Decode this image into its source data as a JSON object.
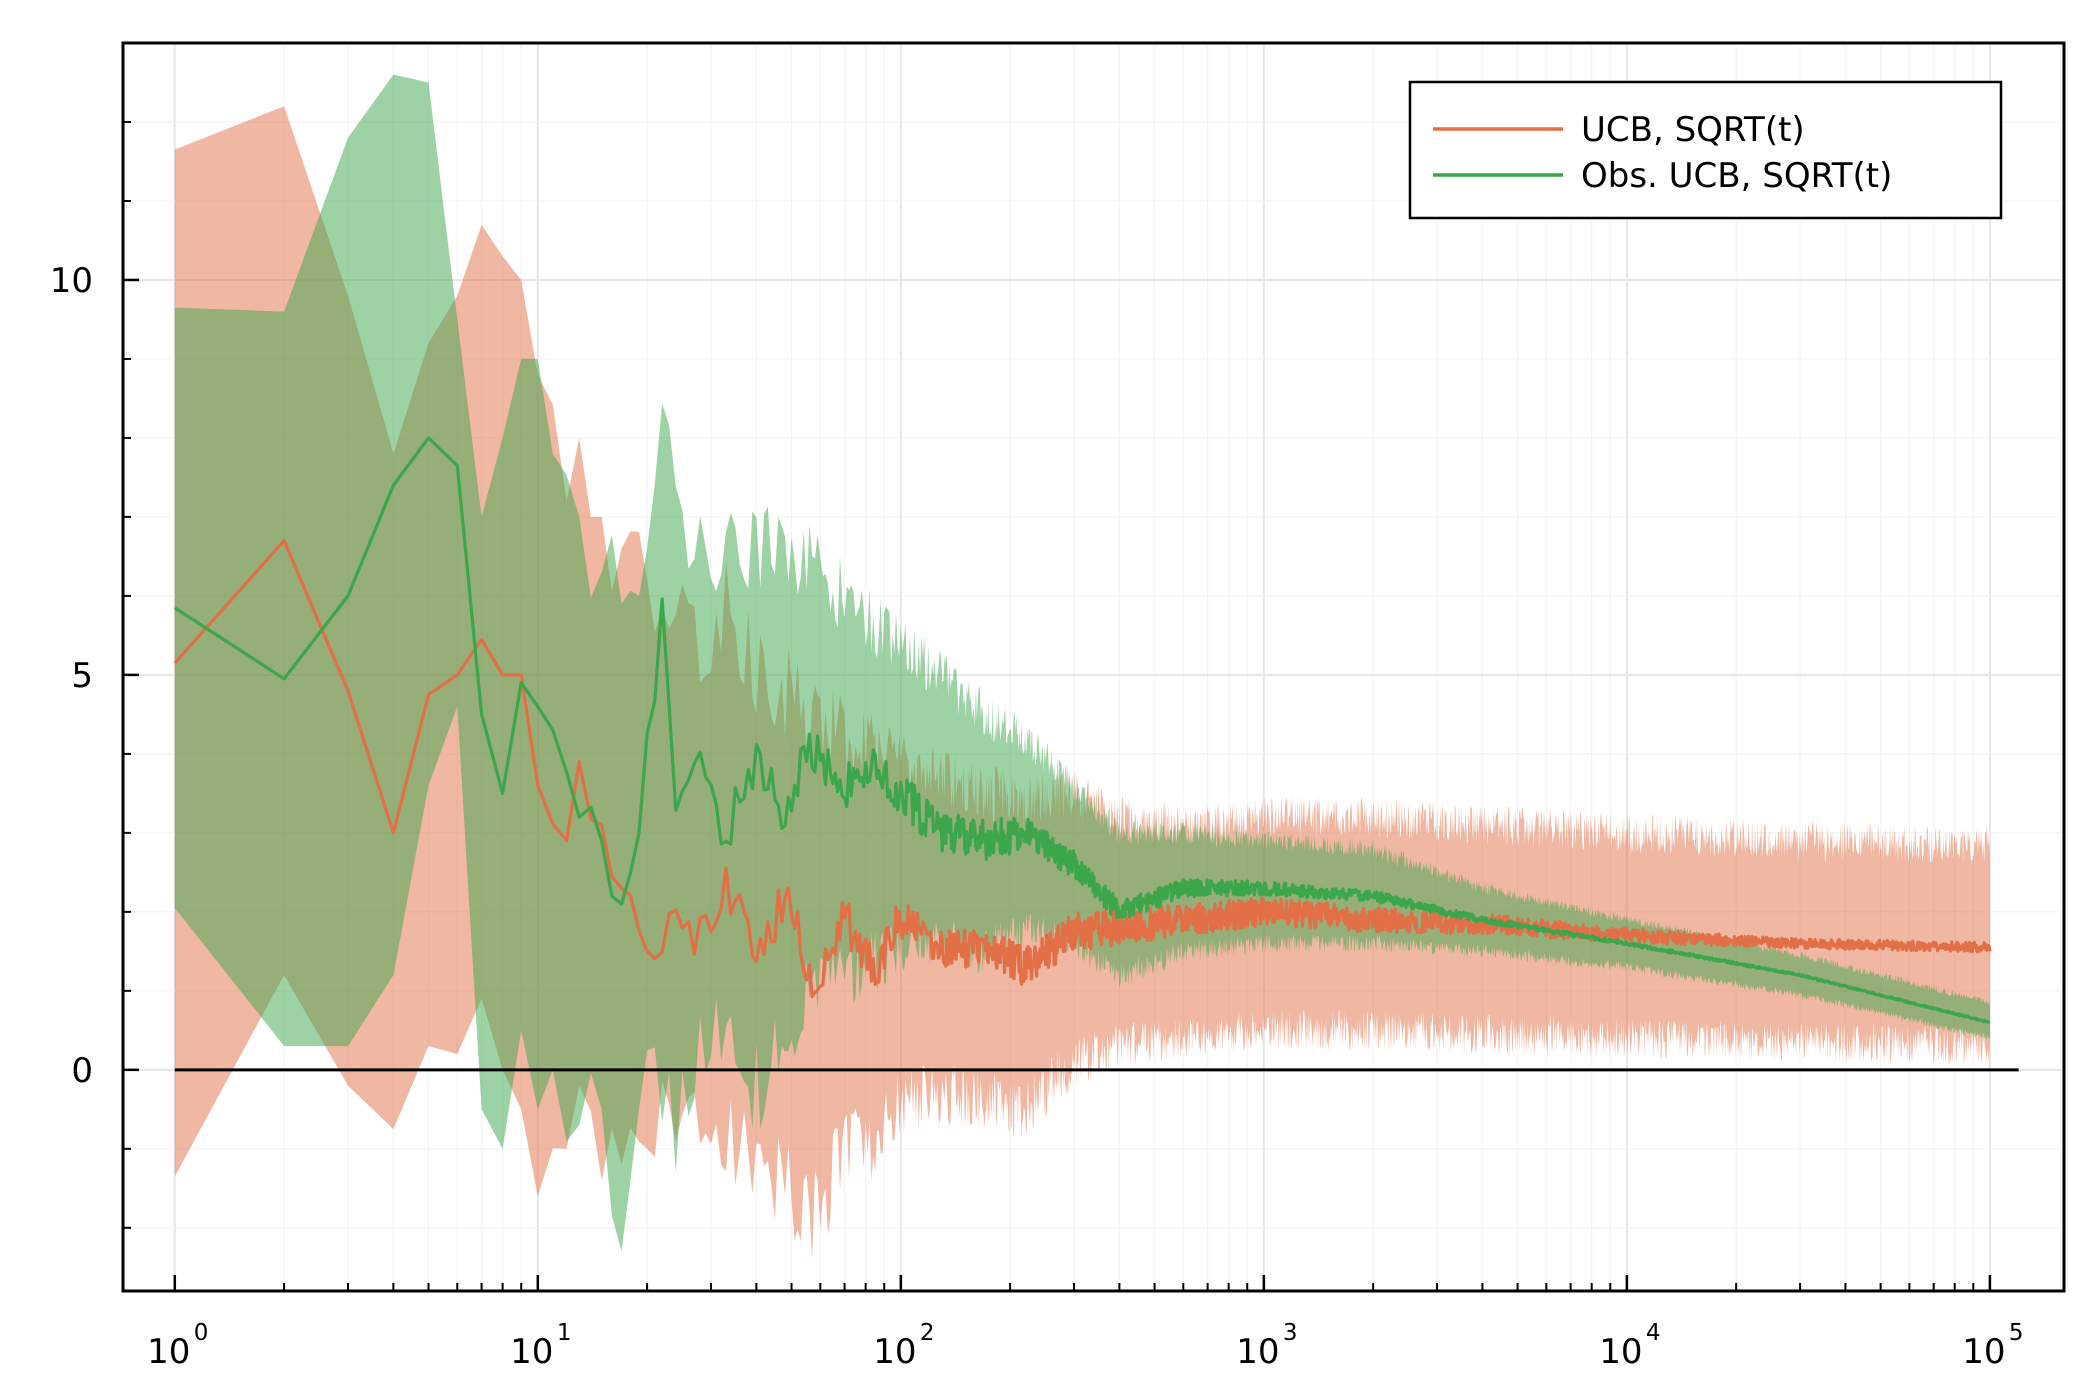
{
  "chart_data": {
    "type": "line",
    "title": "",
    "xlabel": "",
    "ylabel": "",
    "x_scale": "log10",
    "xlim": [
      0.72,
      160000
    ],
    "ylim": [
      -2.8,
      13.0
    ],
    "grid": true,
    "legend_position": "top-right",
    "x_ticks": [
      {
        "base": "10",
        "exp": "0",
        "value": 1
      },
      {
        "base": "10",
        "exp": "1",
        "value": 10
      },
      {
        "base": "10",
        "exp": "2",
        "value": 100
      },
      {
        "base": "10",
        "exp": "3",
        "value": 1000
      },
      {
        "base": "10",
        "exp": "4",
        "value": 10000
      },
      {
        "base": "10",
        "exp": "5",
        "value": 100000
      }
    ],
    "y_ticks": [
      {
        "label": "0",
        "value": 0
      },
      {
        "label": "5",
        "value": 5
      },
      {
        "label": "10",
        "value": 10
      }
    ],
    "reference_line": {
      "y": 0,
      "color": "#000000"
    },
    "series": [
      {
        "name": "UCB, SQRT(t)",
        "color": "#e26f46",
        "band_color": "#e26f46",
        "points": [
          {
            "x": 1,
            "y": 5.15,
            "lo": -1.35,
            "hi": 11.65
          },
          {
            "x": 2,
            "y": 6.7,
            "lo": 1.2,
            "hi": 12.2
          },
          {
            "x": 3,
            "y": 4.8,
            "lo": -0.2,
            "hi": 9.8
          },
          {
            "x": 4,
            "y": 3.0,
            "lo": -0.75,
            "hi": 7.8
          },
          {
            "x": 5,
            "y": 4.75,
            "lo": 0.3,
            "hi": 9.2
          },
          {
            "x": 6,
            "y": 5.0,
            "lo": 0.2,
            "hi": 9.8
          },
          {
            "x": 7,
            "y": 5.45,
            "lo": 0.9,
            "hi": 10.7
          },
          {
            "x": 8,
            "y": 5.0,
            "lo": 0.0,
            "hi": 10.3
          },
          {
            "x": 9,
            "y": 5.0,
            "lo": -0.5,
            "hi": 10.0
          },
          {
            "x": 10,
            "y": 3.6,
            "lo": -1.6,
            "hi": 8.8
          },
          {
            "x": 12,
            "y": 2.9,
            "lo": -1.0,
            "hi": 7.2
          },
          {
            "x": 13,
            "y": 3.9,
            "lo": -0.2,
            "hi": 8.0
          },
          {
            "x": 15,
            "y": 3.1,
            "lo": -1.4,
            "hi": 7.0
          },
          {
            "x": 17,
            "y": 2.3,
            "lo": -1.2,
            "hi": 6.6
          },
          {
            "x": 20,
            "y": 1.5,
            "lo": -1.0,
            "hi": 6.2
          },
          {
            "x": 24,
            "y": 2.0,
            "lo": -0.6,
            "hi": 5.6
          },
          {
            "x": 28,
            "y": 1.7,
            "lo": -1.0,
            "hi": 5.4
          },
          {
            "x": 33,
            "y": 2.4,
            "lo": -0.8,
            "hi": 5.8
          },
          {
            "x": 40,
            "y": 1.4,
            "lo": -1.2,
            "hi": 5.0
          },
          {
            "x": 48,
            "y": 2.2,
            "lo": -1.4,
            "hi": 4.8
          },
          {
            "x": 58,
            "y": 1.1,
            "lo": -1.9,
            "hi": 4.4
          },
          {
            "x": 70,
            "y": 1.9,
            "lo": -1.0,
            "hi": 4.2
          },
          {
            "x": 85,
            "y": 1.3,
            "lo": -0.9,
            "hi": 4.0
          },
          {
            "x": 100,
            "y": 1.9,
            "lo": -0.4,
            "hi": 3.9
          },
          {
            "x": 130,
            "y": 1.5,
            "lo": -0.3,
            "hi": 3.7
          },
          {
            "x": 170,
            "y": 1.6,
            "lo": -0.4,
            "hi": 3.5
          },
          {
            "x": 220,
            "y": 1.3,
            "lo": -0.5,
            "hi": 3.4
          },
          {
            "x": 300,
            "y": 1.75,
            "lo": 0.1,
            "hi": 3.5
          },
          {
            "x": 400,
            "y": 1.8,
            "lo": 0.3,
            "hi": 3.2
          },
          {
            "x": 600,
            "y": 1.9,
            "lo": 0.4,
            "hi": 3.1
          },
          {
            "x": 1000,
            "y": 2.0,
            "lo": 0.5,
            "hi": 3.2
          },
          {
            "x": 2000,
            "y": 1.9,
            "lo": 0.5,
            "hi": 3.2
          },
          {
            "x": 4000,
            "y": 1.85,
            "lo": 0.45,
            "hi": 3.1
          },
          {
            "x": 10000,
            "y": 1.7,
            "lo": 0.4,
            "hi": 3.0
          },
          {
            "x": 30000,
            "y": 1.6,
            "lo": 0.35,
            "hi": 2.9
          },
          {
            "x": 100000,
            "y": 1.55,
            "lo": 0.3,
            "hi": 2.85
          }
        ]
      },
      {
        "name": "Obs. UCB, SQRT(t)",
        "color": "#3ba64c",
        "band_color": "#3ba64c",
        "points": [
          {
            "x": 1,
            "y": 5.85,
            "lo": 2.05,
            "hi": 9.65
          },
          {
            "x": 2,
            "y": 4.95,
            "lo": 0.3,
            "hi": 9.6
          },
          {
            "x": 3,
            "y": 6.0,
            "lo": 0.3,
            "hi": 11.8
          },
          {
            "x": 4,
            "y": 7.4,
            "lo": 1.2,
            "hi": 12.6
          },
          {
            "x": 5,
            "y": 8.0,
            "lo": 3.6,
            "hi": 12.5
          },
          {
            "x": 6,
            "y": 7.65,
            "lo": 4.6,
            "hi": 9.5
          },
          {
            "x": 7,
            "y": 4.5,
            "lo": -0.5,
            "hi": 7.0
          },
          {
            "x": 8,
            "y": 3.5,
            "lo": -1.0,
            "hi": 8.0
          },
          {
            "x": 9,
            "y": 4.9,
            "lo": 0.5,
            "hi": 9.0
          },
          {
            "x": 10,
            "y": 4.6,
            "lo": -0.5,
            "hi": 9.0
          },
          {
            "x": 11,
            "y": 4.3,
            "lo": 0.0,
            "hi": 7.8
          },
          {
            "x": 13,
            "y": 3.2,
            "lo": -0.7,
            "hi": 7.0
          },
          {
            "x": 15,
            "y": 2.9,
            "lo": -0.5,
            "hi": 6.3
          },
          {
            "x": 17,
            "y": 2.1,
            "lo": -2.3,
            "hi": 5.9
          },
          {
            "x": 19,
            "y": 3.0,
            "lo": -0.5,
            "hi": 6.0
          },
          {
            "x": 22,
            "y": 5.9,
            "lo": 0.2,
            "hi": 9.0
          },
          {
            "x": 24,
            "y": 3.5,
            "lo": -0.8,
            "hi": 7.0
          },
          {
            "x": 28,
            "y": 3.9,
            "lo": 0.2,
            "hi": 6.8
          },
          {
            "x": 33,
            "y": 3.0,
            "lo": 0.5,
            "hi": 6.6
          },
          {
            "x": 40,
            "y": 3.9,
            "lo": -0.2,
            "hi": 6.8
          },
          {
            "x": 48,
            "y": 3.2,
            "lo": 0.3,
            "hi": 6.5
          },
          {
            "x": 56,
            "y": 4.1,
            "lo": 1.2,
            "hi": 6.4
          },
          {
            "x": 70,
            "y": 3.6,
            "lo": 1.2,
            "hi": 6.0
          },
          {
            "x": 85,
            "y": 3.9,
            "lo": 1.4,
            "hi": 5.6
          },
          {
            "x": 100,
            "y": 3.5,
            "lo": 1.5,
            "hi": 5.4
          },
          {
            "x": 130,
            "y": 3.0,
            "lo": 1.6,
            "hi": 5.0
          },
          {
            "x": 170,
            "y": 2.9,
            "lo": 1.5,
            "hi": 4.5
          },
          {
            "x": 220,
            "y": 3.0,
            "lo": 1.8,
            "hi": 4.2
          },
          {
            "x": 300,
            "y": 2.6,
            "lo": 1.6,
            "hi": 3.6
          },
          {
            "x": 400,
            "y": 2.0,
            "lo": 1.2,
            "hi": 3.0
          },
          {
            "x": 600,
            "y": 2.3,
            "lo": 1.5,
            "hi": 3.0
          },
          {
            "x": 1000,
            "y": 2.3,
            "lo": 1.6,
            "hi": 2.9
          },
          {
            "x": 2000,
            "y": 2.2,
            "lo": 1.6,
            "hi": 2.8
          },
          {
            "x": 4000,
            "y": 1.9,
            "lo": 1.5,
            "hi": 2.3
          },
          {
            "x": 10000,
            "y": 1.6,
            "lo": 1.3,
            "hi": 1.9
          },
          {
            "x": 30000,
            "y": 1.2,
            "lo": 0.95,
            "hi": 1.45
          },
          {
            "x": 100000,
            "y": 0.6,
            "lo": 0.4,
            "hi": 0.85
          }
        ]
      }
    ]
  }
}
